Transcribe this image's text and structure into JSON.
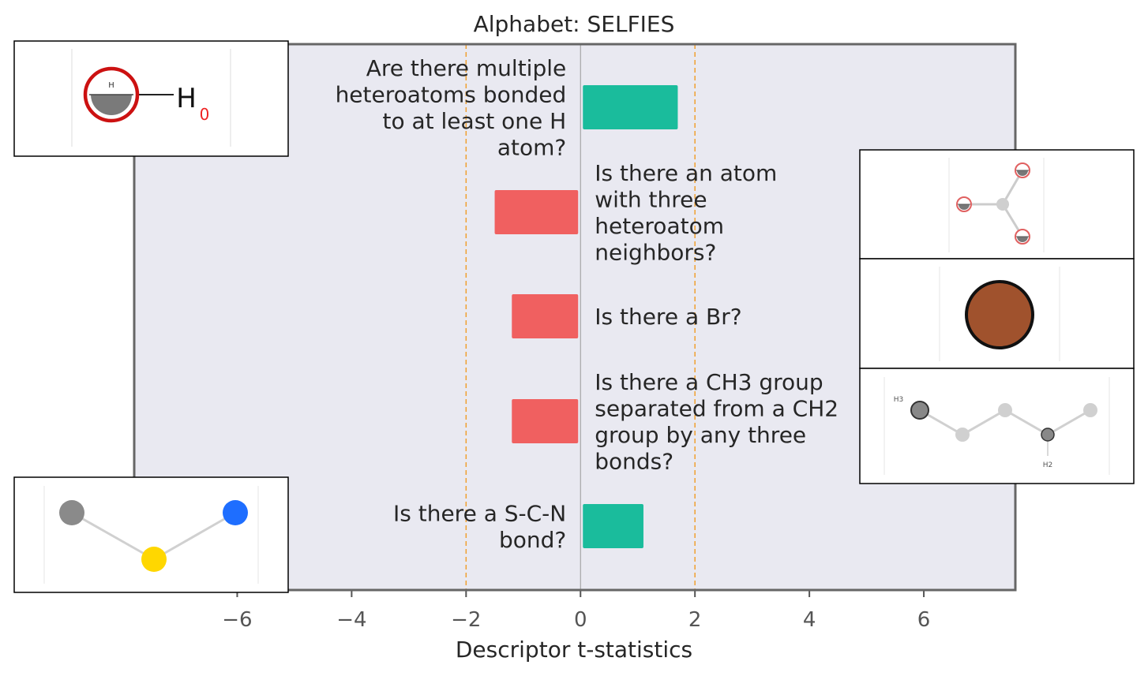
{
  "chart_data": {
    "type": "bar",
    "orientation": "horizontal",
    "title": "Alphabet: SELFIES",
    "xlabel": "Descriptor t-statistics",
    "ylabel": "",
    "xlim": [
      -7.8,
      7.6
    ],
    "xticks": [
      -6,
      -4,
      -2,
      0,
      2,
      4,
      6
    ],
    "xtick_labels": [
      "−6",
      "−4",
      "−2",
      "0",
      "2",
      "4",
      "6"
    ],
    "significance_lines": [
      -2,
      2
    ],
    "grid": false,
    "categories": [
      "Are there multiple heteroatoms bonded to at least one H atom?",
      "Is there an atom with three heteroatom neighbors?",
      "Is there a Br?",
      "Is there a CH3 group separated from a CH2 group by any three bonds?",
      "Is there a S-C-N bond?"
    ],
    "label_lines": [
      [
        "Are there multiple",
        "heteroatoms bonded",
        "to at least one H",
        "atom?"
      ],
      [
        "Is there an atom",
        "with three",
        "heteroatom",
        "neighbors?"
      ],
      [
        "Is there a Br?"
      ],
      [
        "Is there a CH3 group",
        "separated from a CH2",
        "group by any three",
        "bonds?"
      ],
      [
        "Is there a S-C-N",
        "bond?"
      ]
    ],
    "values": [
      1.7,
      -1.5,
      -1.2,
      -1.2,
      1.1
    ]
  },
  "colors": {
    "positive": "#1abc9c",
    "negative": "#f06060",
    "plot_background": "#e9e9f1",
    "threshold_line": "#f0a030",
    "axis_frame": "#666666",
    "zero_line": "#999999"
  },
  "insets": [
    {
      "icon": "hydrogen-bonded-heteroatom-icon",
      "atom_label": "H",
      "subscript": "0",
      "small_label": "H"
    },
    {
      "icon": "three-neighbor-atom-icon"
    },
    {
      "icon": "bromine-atom-icon"
    },
    {
      "icon": "ch3-ch2-chain-icon",
      "label_top": "H3",
      "label_bottom": "H2"
    },
    {
      "icon": "s-c-n-bond-icon"
    }
  ]
}
